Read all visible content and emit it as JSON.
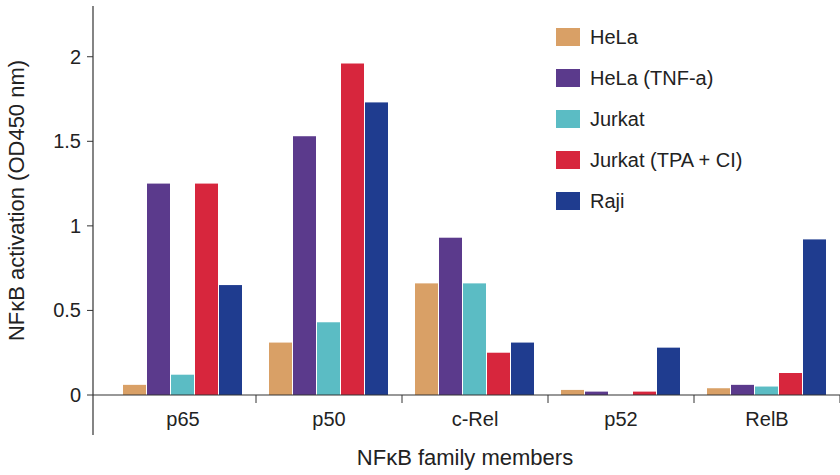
{
  "chart_data": {
    "type": "bar",
    "x_label": "NFκB family members",
    "y_label": "NFκB activation (OD450 nm)",
    "categories": [
      "p65",
      "p50",
      "c-Rel",
      "p52",
      "RelB"
    ],
    "series": [
      {
        "name": "HeLa",
        "color": "#d9a066",
        "values": [
          0.06,
          0.31,
          0.66,
          0.03,
          0.04
        ]
      },
      {
        "name": "HeLa (TNF-a)",
        "color": "#5b3a8c",
        "values": [
          1.25,
          1.53,
          0.93,
          0.02,
          0.06
        ]
      },
      {
        "name": "Jurkat",
        "color": "#5bbcc4",
        "values": [
          0.12,
          0.43,
          0.66,
          0,
          0.05
        ]
      },
      {
        "name": "Jurkat (TPA + CI)",
        "color": "#d7263d",
        "values": [
          1.25,
          1.96,
          0.25,
          0.02,
          0.13
        ]
      },
      {
        "name": "Raji",
        "color": "#1f3c8f",
        "values": [
          0.65,
          1.73,
          0.31,
          0.28,
          0.92
        ]
      }
    ],
    "ylim": [
      0,
      2.3
    ],
    "yticks": [
      0,
      0.5,
      1,
      1.5,
      2
    ],
    "grid": false,
    "legend": "upper right"
  }
}
